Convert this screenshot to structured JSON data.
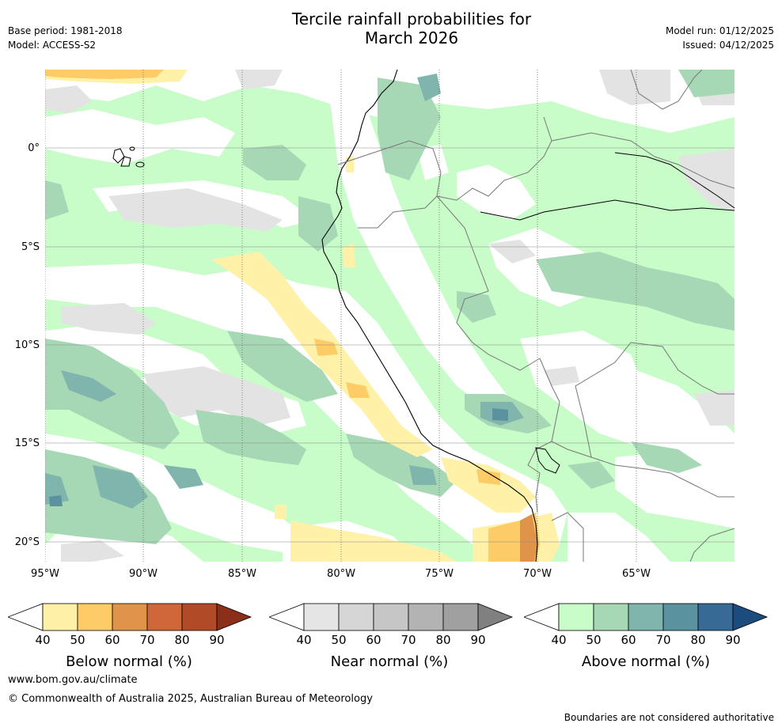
{
  "header": {
    "title_line1": "Tercile rainfall probabilities for",
    "title_line2": "March 2026",
    "base_period": "Base period: 1981-2018",
    "model": "Model: ACCESS-S2",
    "model_run": "Model run: 01/12/2025",
    "issued": "Issued: 04/12/2025"
  },
  "map": {
    "latitude_labels": [
      "0°",
      "5°S",
      "10°S",
      "15°S",
      "20°S"
    ],
    "longitude_labels": [
      "95°W",
      "90°W",
      "85°W",
      "80°W",
      "75°W",
      "70°W",
      "65°W"
    ]
  },
  "colorbars": [
    {
      "title": "Below normal (%)",
      "ticks": [
        "40",
        "50",
        "60",
        "70",
        "80",
        "90"
      ],
      "colors": [
        "#fff1a8",
        "#fdcc66",
        "#e0944a",
        "#cf6738",
        "#b04a27",
        "#8c2f1a"
      ]
    },
    {
      "title": "Near normal (%)",
      "ticks": [
        "40",
        "50",
        "60",
        "70",
        "80",
        "90"
      ],
      "colors": [
        "#e5e5e5",
        "#d6d6d6",
        "#c6c6c6",
        "#b3b3b3",
        "#a0a0a0",
        "#808080"
      ]
    },
    {
      "title": "Above normal (%)",
      "ticks": [
        "40",
        "50",
        "60",
        "70",
        "80",
        "90"
      ],
      "colors": [
        "#c8fcc8",
        "#a6d8b6",
        "#7fb5ad",
        "#5b92a0",
        "#386a96",
        "#1c4c7e"
      ]
    }
  ],
  "footer": {
    "website": "www.bom.gov.au/climate",
    "copyright": "© Commonwealth of Australia 2025, Australian Bureau of Meteorology",
    "disclaimer": "Boundaries are not considered authoritative"
  }
}
